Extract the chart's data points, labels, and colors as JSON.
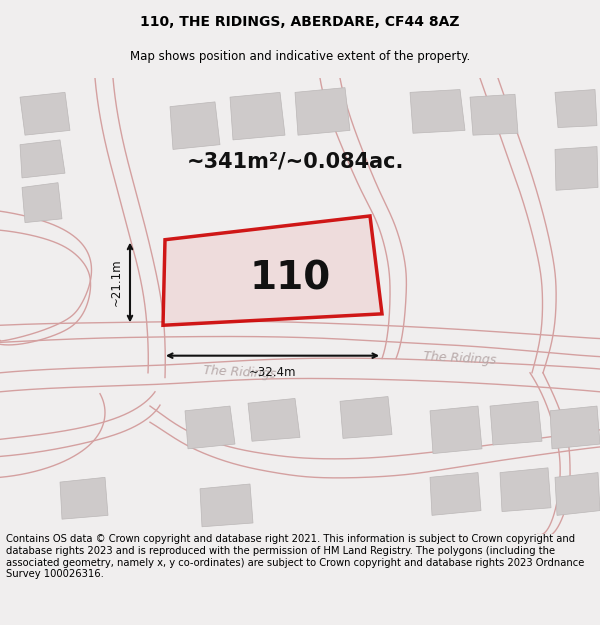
{
  "title": "110, THE RIDINGS, ABERDARE, CF44 8AZ",
  "subtitle": "Map shows position and indicative extent of the property.",
  "footer": "Contains OS data © Crown copyright and database right 2021. This information is subject to Crown copyright and database rights 2023 and is reproduced with the permission of HM Land Registry. The polygons (including the associated geometry, namely x, y co-ordinates) are subject to Crown copyright and database rights 2023 Ordnance Survey 100026316.",
  "area_label": "~341m²/~0.084ac.",
  "width_label": "~32.4m",
  "height_label": "~21.1m",
  "house_number": "110",
  "bg_color": "#f0eeee",
  "map_bg": "#eeebeb",
  "road_line_color": "#d4a0a0",
  "building_color": "#cecaca",
  "building_edge": "#bbb7b7",
  "plot_outline_color": "#cc0000",
  "plot_fill_color": "#eedada",
  "road_label_color": "#b8aaaa",
  "dim_line_color": "#111111",
  "title_fontsize": 10,
  "subtitle_fontsize": 8.5,
  "footer_fontsize": 7.2,
  "area_fontsize": 15,
  "house_fontsize": 28,
  "dim_fontsize": 8.5
}
